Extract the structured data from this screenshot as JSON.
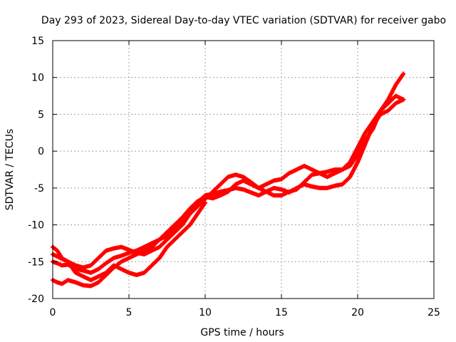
{
  "chart_data": {
    "type": "scatter",
    "title": "Day 293 of 2023, Sidereal Day-to-day VTEC variation (SDTVAR) for receiver gabo",
    "xlabel": "GPS time / hours",
    "ylabel": "SDTVAR / TECUs",
    "xlim": [
      0,
      25
    ],
    "ylim": [
      -20,
      15
    ],
    "x_ticks": [
      "0",
      "5",
      "10",
      "15",
      "20",
      "25"
    ],
    "y_ticks": [
      "15",
      "10",
      "5",
      "0",
      "-5",
      "-10",
      "-15",
      "-20"
    ],
    "grid": true,
    "marker": "+",
    "color": "#ff0000",
    "series": [
      {
        "x": [
          0.0,
          0.3,
          0.6,
          1.0,
          1.5,
          2.0,
          2.5,
          3.0,
          3.5,
          4.0,
          4.5,
          5.0,
          5.5,
          6.0,
          6.5,
          7.0,
          7.5,
          8.0,
          8.5,
          9.0,
          9.5,
          10.0,
          10.5,
          11.0,
          11.5,
          12.0,
          12.5,
          13.0,
          13.5,
          14.0,
          14.5,
          15.0,
          15.5,
          16.0,
          16.5,
          17.0,
          17.5,
          18.0,
          18.5,
          19.0,
          19.5,
          20.0,
          20.5,
          21.0,
          21.5,
          22.0,
          22.5,
          23.0
        ],
        "y": [
          -15.0,
          -15.2,
          -15.5,
          -15.4,
          -16.0,
          -16.2,
          -16.5,
          -16.0,
          -15.2,
          -14.5,
          -14.2,
          -13.8,
          -13.5,
          -13.0,
          -12.5,
          -12.0,
          -11.5,
          -10.5,
          -9.5,
          -8.0,
          -7.0,
          -6.0,
          -5.8,
          -5.5,
          -5.3,
          -5.0,
          -5.2,
          -5.6,
          -6.0,
          -5.5,
          -5.0,
          -5.2,
          -5.6,
          -5.0,
          -4.5,
          -4.8,
          -5.0,
          -5.0,
          -4.7,
          -4.5,
          -3.5,
          -1.5,
          1.0,
          3.5,
          5.0,
          5.5,
          6.5,
          7.0
        ]
      },
      {
        "x": [
          0.0,
          0.3,
          0.6,
          1.0,
          1.5,
          2.0,
          2.5,
          3.0,
          3.5,
          4.0,
          4.5,
          5.0,
          5.5,
          6.0,
          6.5,
          7.0,
          7.5,
          8.0,
          8.5,
          9.0,
          9.5,
          10.0,
          10.5,
          11.0,
          11.5,
          12.0,
          12.5,
          13.0,
          13.5,
          14.0,
          14.5,
          15.0,
          15.5,
          16.0,
          16.5,
          17.0,
          17.5,
          18.0,
          18.5,
          19.0,
          19.5,
          20.0,
          20.5,
          21.0,
          21.5,
          22.0,
          22.5,
          23.0
        ],
        "y": [
          -17.5,
          -17.8,
          -18.0,
          -17.5,
          -17.8,
          -18.2,
          -18.3,
          -17.8,
          -16.8,
          -15.8,
          -15.0,
          -14.5,
          -14.0,
          -13.5,
          -13.0,
          -12.0,
          -11.0,
          -10.0,
          -9.0,
          -7.8,
          -6.8,
          -6.2,
          -6.4,
          -6.0,
          -5.5,
          -4.5,
          -4.0,
          -4.5,
          -5.0,
          -5.5,
          -6.0,
          -6.0,
          -5.5,
          -5.2,
          -4.2,
          -3.2,
          -3.0,
          -2.8,
          -2.5,
          -2.5,
          -1.5,
          0.5,
          2.5,
          4.0,
          5.5,
          7.0,
          9.0,
          10.5
        ]
      },
      {
        "x": [
          0.0,
          0.3,
          0.6,
          1.0,
          1.5,
          2.0,
          2.5,
          3.0,
          3.5,
          4.0,
          4.5,
          5.0,
          5.5,
          6.0,
          6.5,
          7.0,
          7.5,
          8.0,
          8.5,
          9.0,
          9.5,
          10.0,
          10.5,
          11.0,
          11.5,
          12.0,
          12.5,
          13.0,
          13.5,
          14.0,
          14.5,
          15.0,
          15.5,
          16.0,
          16.5,
          17.0,
          17.5,
          18.0,
          18.5,
          19.0,
          19.5,
          20.0,
          20.5,
          21.0,
          21.5,
          22.0,
          22.5,
          23.0
        ],
        "y": [
          -13.0,
          -13.5,
          -14.5,
          -15.0,
          -15.5,
          -15.8,
          -15.5,
          -14.5,
          -13.5,
          -13.2,
          -13.0,
          -13.4,
          -13.8,
          -14.0,
          -13.5,
          -13.0,
          -12.0,
          -11.0,
          -10.0,
          -8.5,
          -7.5,
          -6.5,
          -5.5,
          -4.5,
          -3.5,
          -3.2,
          -3.5,
          -4.2,
          -5.0,
          -4.5,
          -4.0,
          -3.8,
          -3.0,
          -2.5,
          -2.0,
          -2.5,
          -3.0,
          -3.5,
          -3.0,
          -2.5,
          -2.0,
          -0.5,
          1.5,
          3.0,
          5.5,
          6.5,
          7.5,
          7.0
        ]
      },
      {
        "x": [
          0.0,
          0.5,
          1.0,
          1.5,
          2.0,
          2.5,
          3.0,
          3.5,
          4.0,
          4.5,
          5.0,
          5.5,
          6.0,
          6.5,
          7.0,
          7.5,
          8.0,
          8.5,
          9.0,
          9.5,
          10.0
        ],
        "y": [
          -14.0,
          -14.5,
          -15.0,
          -16.5,
          -17.0,
          -17.5,
          -17.0,
          -16.5,
          -15.5,
          -16.0,
          -16.5,
          -16.8,
          -16.5,
          -15.5,
          -14.5,
          -13.0,
          -12.0,
          -11.0,
          -10.0,
          -8.5,
          -7.0
        ]
      }
    ]
  }
}
